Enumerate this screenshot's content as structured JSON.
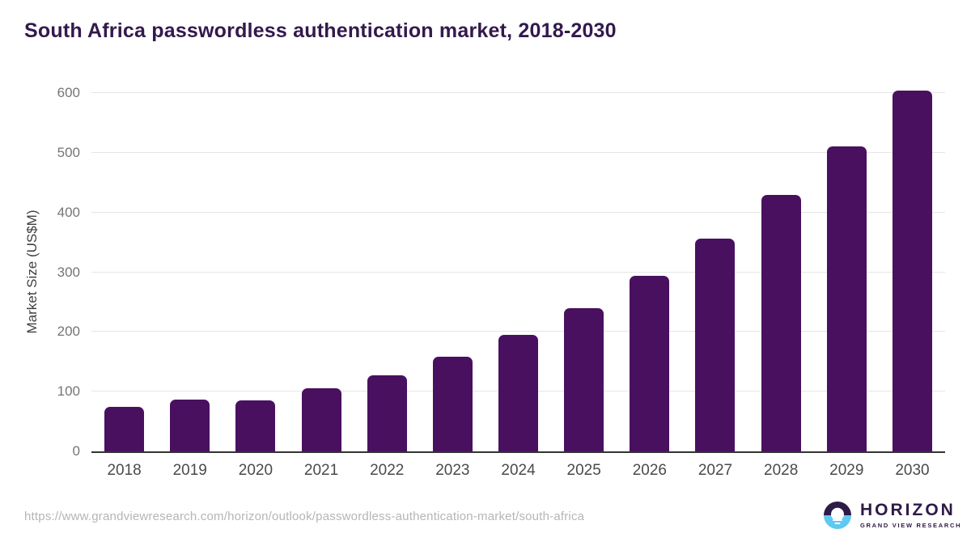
{
  "chart_data": {
    "type": "bar",
    "title": "South Africa passwordless authentication market, 2018-2030",
    "xlabel": "",
    "ylabel": "Market Size (US$M)",
    "categories": [
      "2018",
      "2019",
      "2020",
      "2021",
      "2022",
      "2023",
      "2024",
      "2025",
      "2026",
      "2027",
      "2028",
      "2029",
      "2030"
    ],
    "values": [
      74,
      87,
      85,
      105,
      128,
      158,
      195,
      240,
      294,
      356,
      430,
      511,
      604
    ],
    "yticks": [
      0,
      100,
      200,
      300,
      400,
      500,
      600
    ],
    "ylim": [
      0,
      600
    ],
    "grid": true,
    "legend": "none",
    "bar_color": "#4a1060"
  },
  "footer": {
    "source_url": "https://www.grandviewresearch.com/horizon/outlook/passwordless-authentication-market/south-africa",
    "logo": {
      "name": "HORIZON",
      "subtitle": "GRAND VIEW RESEARCH"
    }
  },
  "colors": {
    "bar": "#4a1060",
    "title_text": "#33194d",
    "axis_line": "#333333",
    "gridline": "#e5e5e5",
    "y_tick_text": "#757575",
    "x_tick_text": "#4a4a4a",
    "source_text": "#b5b5b5",
    "logo_purple": "#2e1a47",
    "logo_blue": "#5fc9f0"
  }
}
